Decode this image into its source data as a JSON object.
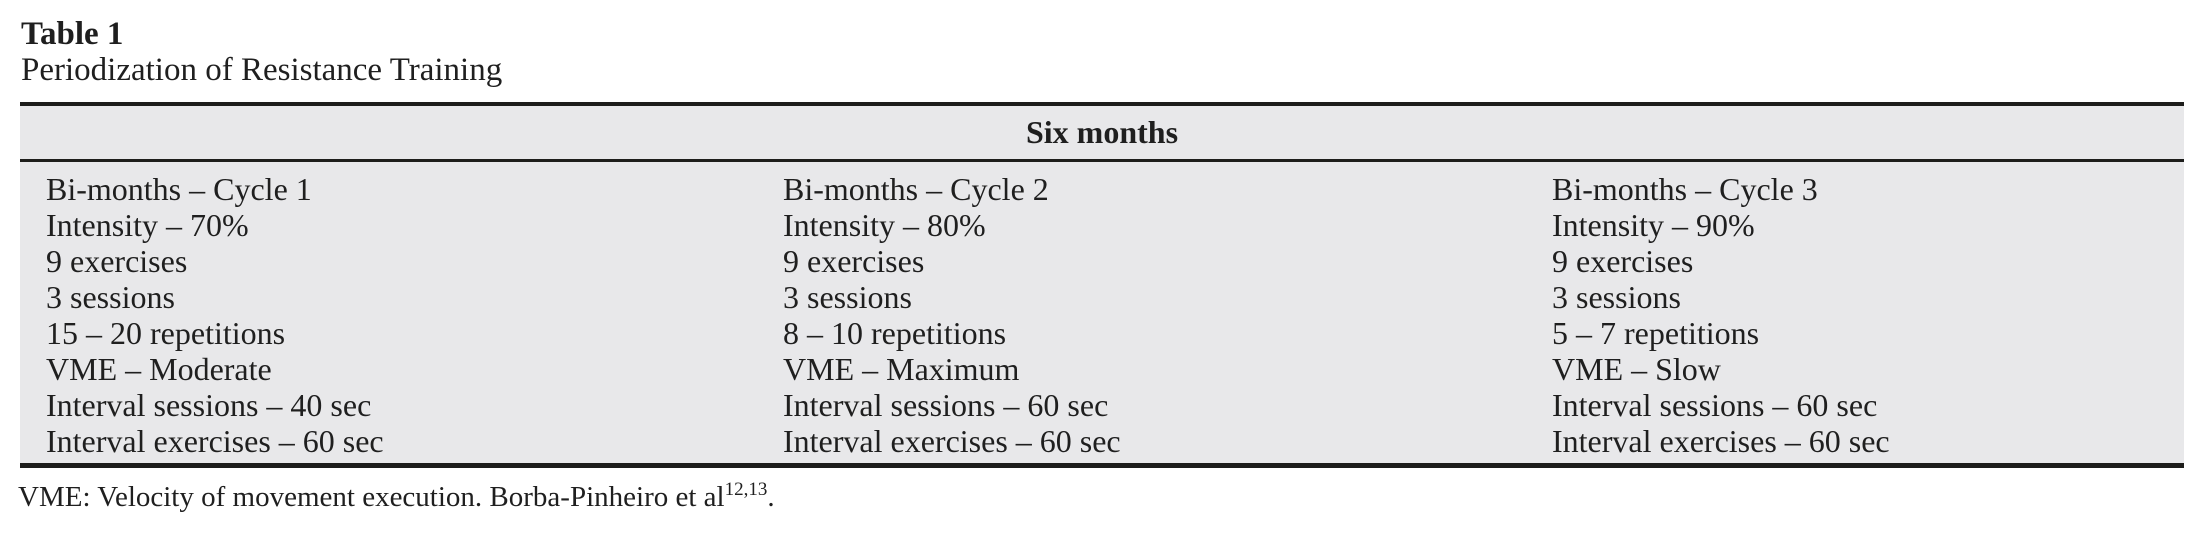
{
  "colors": {
    "page_background": "#ffffff",
    "table_shading": "#e8e8ea",
    "rule": "#1d1d1b",
    "text": "#1f1f1f"
  },
  "title": {
    "label": "Table 1",
    "caption": "Periodization of Resistance Training"
  },
  "table": {
    "header": "Six months",
    "columns": [
      {
        "lines": [
          "Bi-months – Cycle 1",
          "Intensity – 70%",
          "9 exercises",
          "3 sessions",
          "15 – 20 repetitions",
          "VME – Moderate",
          "Interval sessions – 40 sec",
          "Interval exercises – 60 sec"
        ]
      },
      {
        "lines": [
          "Bi-months – Cycle 2",
          "Intensity – 80%",
          "9 exercises",
          "3 sessions",
          "8 – 10 repetitions",
          "VME – Maximum",
          "Interval sessions – 60 sec",
          "Interval exercises – 60 sec"
        ]
      },
      {
        "lines": [
          "Bi-months – Cycle 3",
          "Intensity – 90%",
          "9 exercises",
          "3 sessions",
          "5 – 7 repetitions",
          "VME – Slow",
          "Interval sessions – 60 sec",
          "Interval exercises – 60 sec"
        ]
      }
    ]
  },
  "footnote": {
    "text": "VME: Velocity of movement execution. Borba-Pinheiro et al",
    "refs": "12,13",
    "suffix": "."
  }
}
